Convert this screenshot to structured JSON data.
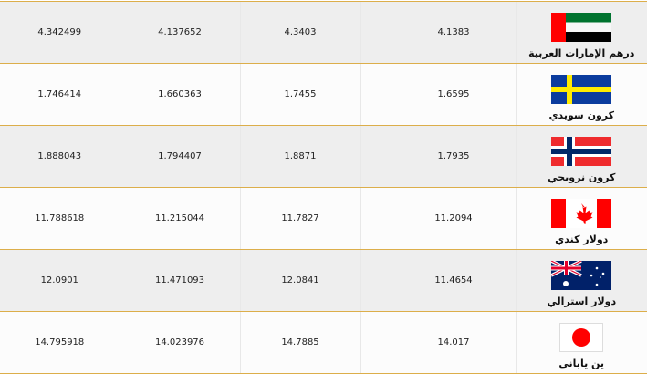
{
  "rows": [
    {
      "currency": "درهم الإمارات العربية",
      "flag": "uae-flag-icon",
      "values": [
        "4.342499",
        "4.137652",
        "4.3403",
        "4.1383"
      ]
    },
    {
      "currency": "كرون سويدي",
      "flag": "sweden-flag-icon",
      "values": [
        "1.746414",
        "1.660363",
        "1.7455",
        "1.6595"
      ]
    },
    {
      "currency": "كرون نرويجي",
      "flag": "norway-flag-icon",
      "values": [
        "1.888043",
        "1.794407",
        "1.8871",
        "1.7935"
      ]
    },
    {
      "currency": "دولار كندي",
      "flag": "canada-flag-icon",
      "values": [
        "11.788618",
        "11.215044",
        "11.7827",
        "11.2094"
      ]
    },
    {
      "currency": "دولار استرالي",
      "flag": "australia-flag-icon",
      "values": [
        "12.0901",
        "11.471093",
        "12.0841",
        "11.4654"
      ]
    },
    {
      "currency": "ين ياباني",
      "flag": "japan-flag-icon",
      "values": [
        "14.795918",
        "14.023976",
        "14.7885",
        "14.017"
      ]
    }
  ]
}
